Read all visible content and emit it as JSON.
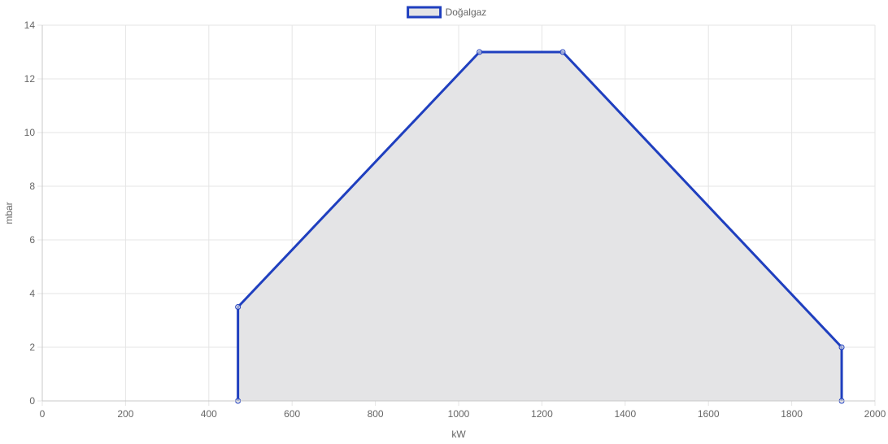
{
  "chart_data": {
    "type": "area",
    "legend_position": "top",
    "grid": true,
    "xlabel": "kW",
    "ylabel": "mbar",
    "xlim": [
      0,
      2000
    ],
    "ylim": [
      0,
      14
    ],
    "x_ticks": [
      0,
      200,
      400,
      600,
      800,
      1000,
      1200,
      1400,
      1600,
      1800,
      2000
    ],
    "y_ticks": [
      0,
      2,
      4,
      6,
      8,
      10,
      12,
      14
    ],
    "series": [
      {
        "name": "Doğalgaz",
        "color": "#1f3fbf",
        "fill_color": "#e4e4e6",
        "points": [
          {
            "x": 470,
            "y": 0
          },
          {
            "x": 470,
            "y": 3.5
          },
          {
            "x": 1050,
            "y": 13
          },
          {
            "x": 1250,
            "y": 13
          },
          {
            "x": 1920,
            "y": 2
          },
          {
            "x": 1920,
            "y": 0
          }
        ]
      }
    ]
  }
}
